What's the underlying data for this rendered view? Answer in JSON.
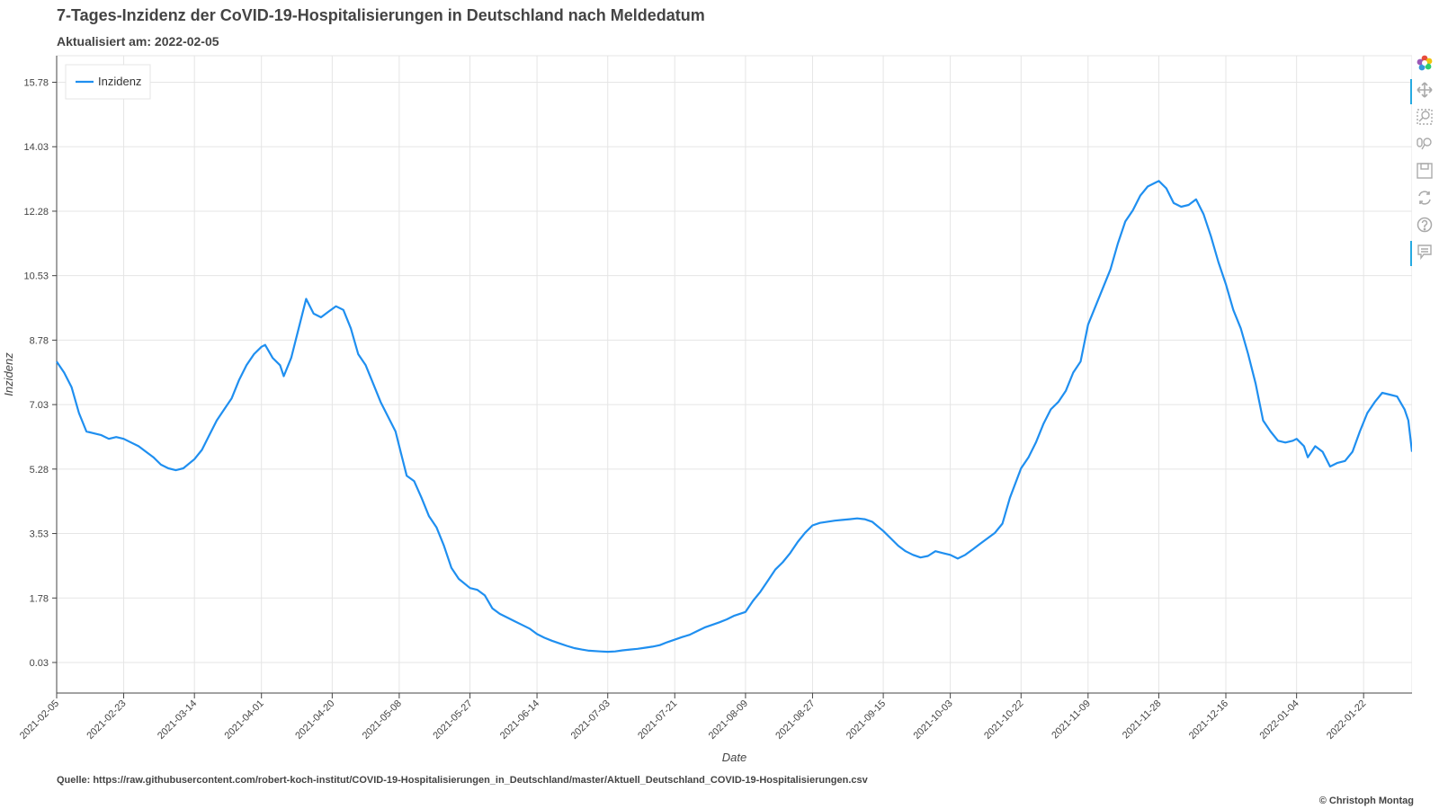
{
  "header": {
    "title": "7-Tages-Inzidenz der CoVID-19-Hospitalisierungen in Deutschland nach Meldedatum",
    "subtitle": "Aktualisiert am: 2022-02-05"
  },
  "footer": {
    "source": "Quelle: https://raw.githubusercontent.com/robert-koch-institut/COVID-19-Hospitalisierungen_in_Deutschland/master/Aktuell_Deutschland_COVID-19-Hospitalisierungen.csv",
    "credit": "© Christoph Montag"
  },
  "toolbar": {
    "tools": [
      "bokeh-logo-icon",
      "pan-icon",
      "box-zoom-icon",
      "wheel-zoom-icon",
      "save-icon",
      "reset-icon",
      "help-icon",
      "hover-icon"
    ]
  },
  "chart_data": {
    "type": "line",
    "xlabel": "Date",
    "ylabel": "Inzidenz",
    "legend": {
      "entries": [
        "Inzidenz"
      ],
      "placement": "top-left"
    },
    "grid": true,
    "xlim": [
      "2021-02-05",
      "2022-02-04"
    ],
    "ylim": [
      -0.8,
      16.5
    ],
    "x_ticks": [
      "2021-02-05",
      "2021-02-23",
      "2021-03-14",
      "2021-04-01",
      "2021-04-20",
      "2021-05-08",
      "2021-05-27",
      "2021-06-14",
      "2021-07-03",
      "2021-07-21",
      "2021-08-09",
      "2021-08-27",
      "2021-09-15",
      "2021-10-03",
      "2021-10-22",
      "2021-11-09",
      "2021-11-28",
      "2021-12-16",
      "2022-01-04",
      "2022-01-22"
    ],
    "y_ticks": [
      "0.03",
      "1.78",
      "3.53",
      "5.28",
      "7.03",
      "8.78",
      "10.53",
      "12.28",
      "14.03",
      "15.78"
    ],
    "series": [
      {
        "name": "Inzidenz",
        "color": "#1f8ff0",
        "points": [
          [
            "2021-02-05",
            8.2
          ],
          [
            "2021-02-07",
            7.9
          ],
          [
            "2021-02-09",
            7.5
          ],
          [
            "2021-02-11",
            6.8
          ],
          [
            "2021-02-13",
            6.3
          ],
          [
            "2021-02-15",
            6.25
          ],
          [
            "2021-02-17",
            6.2
          ],
          [
            "2021-02-19",
            6.1
          ],
          [
            "2021-02-21",
            6.15
          ],
          [
            "2021-02-23",
            6.1
          ],
          [
            "2021-02-25",
            6.0
          ],
          [
            "2021-02-27",
            5.9
          ],
          [
            "2021-03-01",
            5.75
          ],
          [
            "2021-03-03",
            5.6
          ],
          [
            "2021-03-05",
            5.4
          ],
          [
            "2021-03-07",
            5.3
          ],
          [
            "2021-03-09",
            5.25
          ],
          [
            "2021-03-11",
            5.3
          ],
          [
            "2021-03-14",
            5.55
          ],
          [
            "2021-03-16",
            5.8
          ],
          [
            "2021-03-18",
            6.2
          ],
          [
            "2021-03-20",
            6.6
          ],
          [
            "2021-03-22",
            6.9
          ],
          [
            "2021-03-24",
            7.2
          ],
          [
            "2021-03-26",
            7.7
          ],
          [
            "2021-03-28",
            8.1
          ],
          [
            "2021-03-30",
            8.4
          ],
          [
            "2021-04-01",
            8.6
          ],
          [
            "2021-04-02",
            8.65
          ],
          [
            "2021-04-04",
            8.3
          ],
          [
            "2021-04-06",
            8.1
          ],
          [
            "2021-04-07",
            7.8
          ],
          [
            "2021-04-09",
            8.3
          ],
          [
            "2021-04-11",
            9.1
          ],
          [
            "2021-04-13",
            9.9
          ],
          [
            "2021-04-15",
            9.5
          ],
          [
            "2021-04-17",
            9.4
          ],
          [
            "2021-04-19",
            9.55
          ],
          [
            "2021-04-21",
            9.7
          ],
          [
            "2021-04-23",
            9.6
          ],
          [
            "2021-04-25",
            9.1
          ],
          [
            "2021-04-27",
            8.4
          ],
          [
            "2021-04-29",
            8.1
          ],
          [
            "2021-05-01",
            7.6
          ],
          [
            "2021-05-03",
            7.1
          ],
          [
            "2021-05-05",
            6.7
          ],
          [
            "2021-05-07",
            6.3
          ],
          [
            "2021-05-08",
            5.9
          ],
          [
            "2021-05-10",
            5.1
          ],
          [
            "2021-05-12",
            4.95
          ],
          [
            "2021-05-14",
            4.5
          ],
          [
            "2021-05-16",
            4.0
          ],
          [
            "2021-05-18",
            3.7
          ],
          [
            "2021-05-20",
            3.2
          ],
          [
            "2021-05-22",
            2.6
          ],
          [
            "2021-05-24",
            2.3
          ],
          [
            "2021-05-27",
            2.05
          ],
          [
            "2021-05-29",
            2.0
          ],
          [
            "2021-05-31",
            1.85
          ],
          [
            "2021-06-02",
            1.5
          ],
          [
            "2021-06-04",
            1.35
          ],
          [
            "2021-06-06",
            1.25
          ],
          [
            "2021-06-08",
            1.15
          ],
          [
            "2021-06-10",
            1.05
          ],
          [
            "2021-06-12",
            0.95
          ],
          [
            "2021-06-14",
            0.8
          ],
          [
            "2021-06-16",
            0.7
          ],
          [
            "2021-06-18",
            0.62
          ],
          [
            "2021-06-20",
            0.55
          ],
          [
            "2021-06-22",
            0.48
          ],
          [
            "2021-06-24",
            0.42
          ],
          [
            "2021-06-26",
            0.38
          ],
          [
            "2021-06-28",
            0.35
          ],
          [
            "2021-07-01",
            0.33
          ],
          [
            "2021-07-03",
            0.32
          ],
          [
            "2021-07-05",
            0.33
          ],
          [
            "2021-07-07",
            0.36
          ],
          [
            "2021-07-09",
            0.38
          ],
          [
            "2021-07-11",
            0.4
          ],
          [
            "2021-07-13",
            0.43
          ],
          [
            "2021-07-15",
            0.46
          ],
          [
            "2021-07-17",
            0.5
          ],
          [
            "2021-07-19",
            0.58
          ],
          [
            "2021-07-21",
            0.65
          ],
          [
            "2021-07-23",
            0.72
          ],
          [
            "2021-07-25",
            0.78
          ],
          [
            "2021-07-27",
            0.88
          ],
          [
            "2021-07-29",
            0.98
          ],
          [
            "2021-07-31",
            1.05
          ],
          [
            "2021-08-02",
            1.12
          ],
          [
            "2021-08-04",
            1.2
          ],
          [
            "2021-08-06",
            1.3
          ],
          [
            "2021-08-09",
            1.4
          ],
          [
            "2021-08-11",
            1.7
          ],
          [
            "2021-08-13",
            1.95
          ],
          [
            "2021-08-15",
            2.25
          ],
          [
            "2021-08-17",
            2.55
          ],
          [
            "2021-08-19",
            2.75
          ],
          [
            "2021-08-21",
            3.0
          ],
          [
            "2021-08-23",
            3.3
          ],
          [
            "2021-08-25",
            3.55
          ],
          [
            "2021-08-27",
            3.75
          ],
          [
            "2021-08-29",
            3.82
          ],
          [
            "2021-08-31",
            3.85
          ],
          [
            "2021-09-02",
            3.88
          ],
          [
            "2021-09-04",
            3.9
          ],
          [
            "2021-09-06",
            3.92
          ],
          [
            "2021-09-08",
            3.94
          ],
          [
            "2021-09-10",
            3.92
          ],
          [
            "2021-09-12",
            3.85
          ],
          [
            "2021-09-15",
            3.6
          ],
          [
            "2021-09-17",
            3.4
          ],
          [
            "2021-09-19",
            3.2
          ],
          [
            "2021-09-21",
            3.05
          ],
          [
            "2021-09-23",
            2.95
          ],
          [
            "2021-09-25",
            2.88
          ],
          [
            "2021-09-27",
            2.92
          ],
          [
            "2021-09-29",
            3.05
          ],
          [
            "2021-10-01",
            3.0
          ],
          [
            "2021-10-03",
            2.95
          ],
          [
            "2021-10-05",
            2.85
          ],
          [
            "2021-10-07",
            2.95
          ],
          [
            "2021-10-09",
            3.1
          ],
          [
            "2021-10-11",
            3.25
          ],
          [
            "2021-10-13",
            3.4
          ],
          [
            "2021-10-15",
            3.55
          ],
          [
            "2021-10-17",
            3.8
          ],
          [
            "2021-10-19",
            4.5
          ],
          [
            "2021-10-22",
            5.3
          ],
          [
            "2021-10-24",
            5.6
          ],
          [
            "2021-10-26",
            6.0
          ],
          [
            "2021-10-28",
            6.5
          ],
          [
            "2021-10-30",
            6.9
          ],
          [
            "2021-11-01",
            7.1
          ],
          [
            "2021-11-03",
            7.4
          ],
          [
            "2021-11-05",
            7.9
          ],
          [
            "2021-11-07",
            8.2
          ],
          [
            "2021-11-09",
            9.2
          ],
          [
            "2021-11-11",
            9.7
          ],
          [
            "2021-11-13",
            10.2
          ],
          [
            "2021-11-15",
            10.7
          ],
          [
            "2021-11-17",
            11.4
          ],
          [
            "2021-11-19",
            12.0
          ],
          [
            "2021-11-21",
            12.3
          ],
          [
            "2021-11-23",
            12.7
          ],
          [
            "2021-11-25",
            12.95
          ],
          [
            "2021-11-27",
            13.05
          ],
          [
            "2021-11-28",
            13.1
          ],
          [
            "2021-11-30",
            12.9
          ],
          [
            "2021-12-02",
            12.5
          ],
          [
            "2021-12-04",
            12.4
          ],
          [
            "2021-12-06",
            12.45
          ],
          [
            "2021-12-08",
            12.6
          ],
          [
            "2021-12-10",
            12.2
          ],
          [
            "2021-12-12",
            11.6
          ],
          [
            "2021-12-14",
            10.9
          ],
          [
            "2021-12-16",
            10.3
          ],
          [
            "2021-12-18",
            9.6
          ],
          [
            "2021-12-20",
            9.1
          ],
          [
            "2021-12-22",
            8.4
          ],
          [
            "2021-12-24",
            7.6
          ],
          [
            "2021-12-26",
            6.6
          ],
          [
            "2021-12-28",
            6.3
          ],
          [
            "2021-12-30",
            6.05
          ],
          [
            "2022-01-01",
            6.0
          ],
          [
            "2022-01-03",
            6.05
          ],
          [
            "2022-01-04",
            6.1
          ],
          [
            "2022-01-06",
            5.9
          ],
          [
            "2022-01-07",
            5.6
          ],
          [
            "2022-01-09",
            5.9
          ],
          [
            "2022-01-11",
            5.75
          ],
          [
            "2022-01-13",
            5.35
          ],
          [
            "2022-01-15",
            5.45
          ],
          [
            "2022-01-17",
            5.5
          ],
          [
            "2022-01-19",
            5.75
          ],
          [
            "2022-01-21",
            6.3
          ],
          [
            "2022-01-23",
            6.8
          ],
          [
            "2022-01-25",
            7.1
          ],
          [
            "2022-01-27",
            7.35
          ],
          [
            "2022-01-29",
            7.3
          ],
          [
            "2022-01-31",
            7.25
          ],
          [
            "2022-02-02",
            6.9
          ],
          [
            "2022-02-03",
            6.6
          ],
          [
            "2022-02-04",
            5.75
          ]
        ]
      }
    ]
  }
}
